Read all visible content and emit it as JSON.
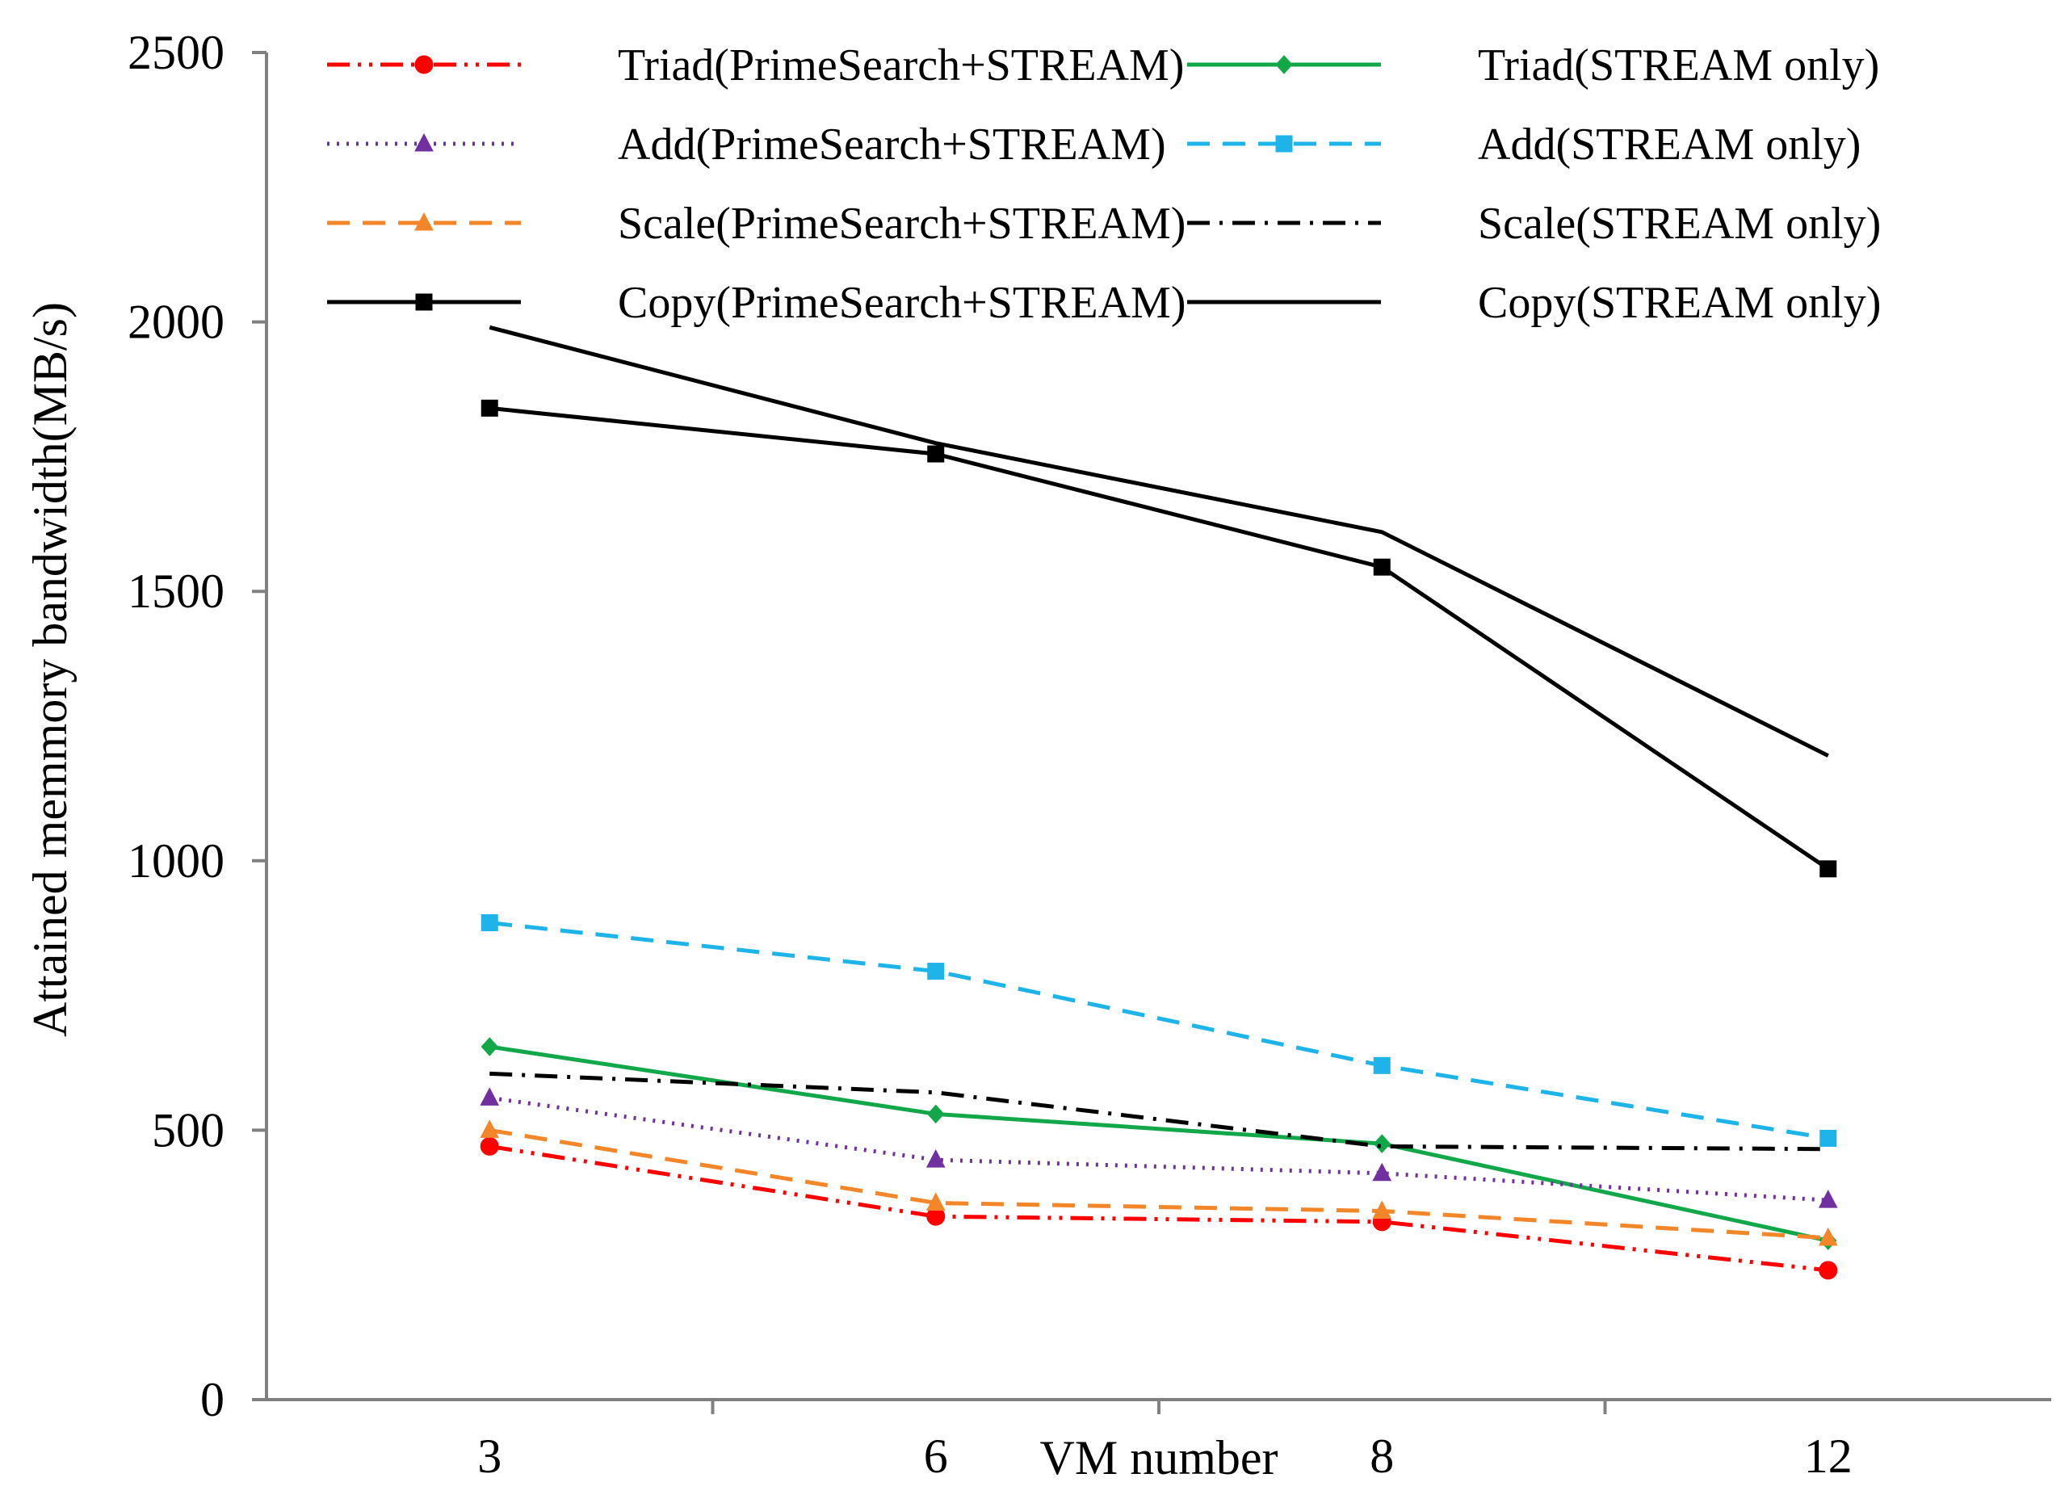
{
  "chart_data": {
    "type": "line",
    "title": "",
    "xlabel": "VM number",
    "ylabel": "Attained memmory bandwidth(MB/s)",
    "categories": [
      "3",
      "6",
      "8",
      "12"
    ],
    "ylim": [
      0,
      2500
    ],
    "yticks": [
      0,
      500,
      1000,
      1500,
      2000,
      2500
    ],
    "grid": false,
    "legend_position": "top",
    "series": [
      {
        "name": "Triad(PrimeSearch+STREAM)",
        "values": [
          470,
          340,
          330,
          240
        ],
        "color": "#ff0000",
        "dash": "dashdotdot",
        "marker": "circle"
      },
      {
        "name": "Triad(STREAM only)",
        "values": [
          655,
          530,
          475,
          295
        ],
        "color": "#12a84a",
        "dash": "solid",
        "marker": "diamond"
      },
      {
        "name": "Add(PrimeSearch+STREAM)",
        "values": [
          560,
          445,
          420,
          370
        ],
        "color": "#7030a0",
        "dash": "dotted",
        "marker": "triangle"
      },
      {
        "name": "Add(STREAM only)",
        "values": [
          885,
          795,
          620,
          485
        ],
        "color": "#1eb4ea",
        "dash": "dashed",
        "marker": "square"
      },
      {
        "name": "Scale(PrimeSearch+STREAM)",
        "values": [
          500,
          365,
          350,
          300
        ],
        "color": "#f4862a",
        "dash": "dashed",
        "marker": "triangle"
      },
      {
        "name": "Scale(STREAM only)",
        "values": [
          605,
          570,
          470,
          465
        ],
        "color": "#000000",
        "dash": "dashdot",
        "marker": "none"
      },
      {
        "name": "Copy(PrimeSearch+STREAM)",
        "values": [
          1840,
          1755,
          1545,
          985
        ],
        "color": "#000000",
        "dash": "solid",
        "marker": "square"
      },
      {
        "name": "Copy(STREAM only)",
        "values": [
          1990,
          1775,
          1610,
          1195
        ],
        "color": "#000000",
        "dash": "solid",
        "marker": "none"
      }
    ]
  }
}
